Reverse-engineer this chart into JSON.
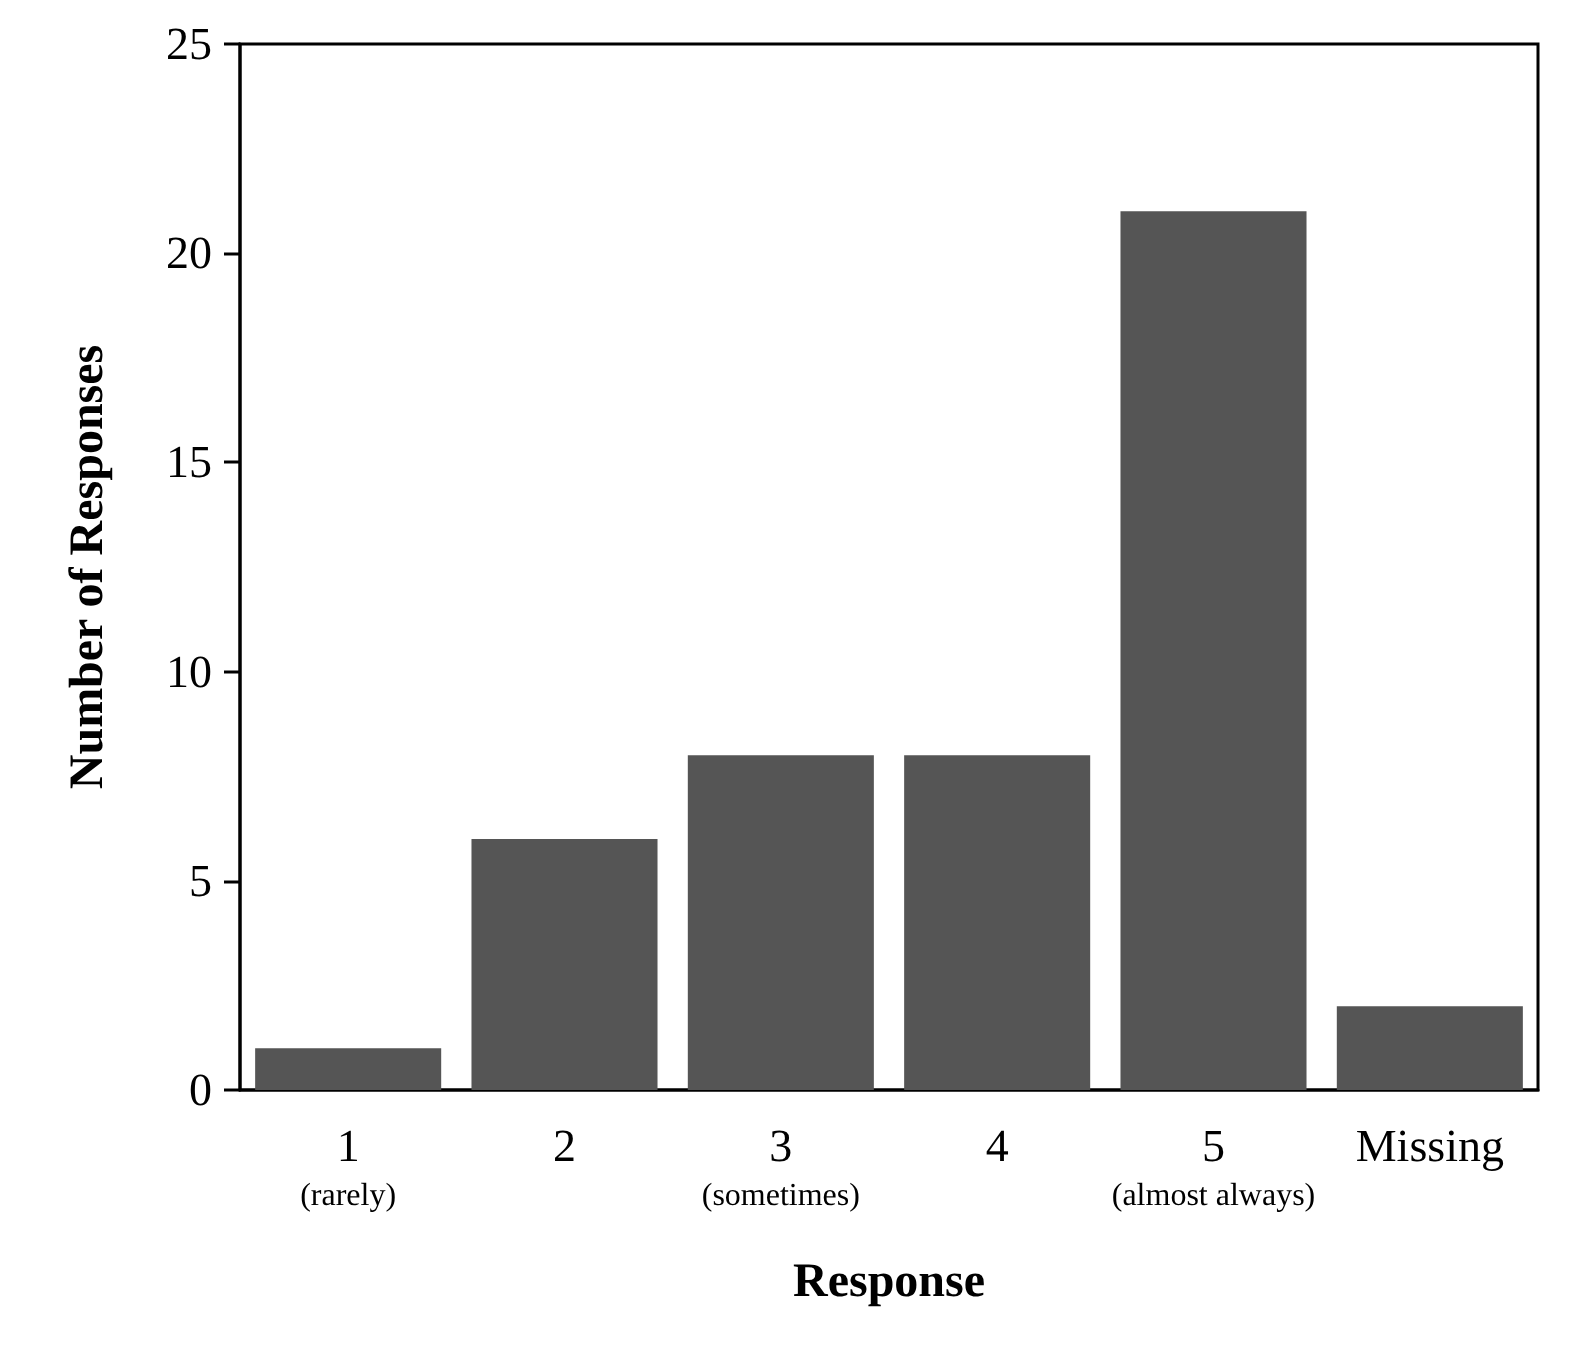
{
  "chart_data": {
    "type": "bar",
    "xlabel": "Response",
    "ylabel": "Number of Responses",
    "categories": [
      "1\n(rarely)",
      "2",
      "3\n(sometimes)",
      "4",
      "5\n(almost always)",
      "Missing"
    ],
    "values": [
      1,
      6,
      8,
      8,
      21,
      2
    ],
    "color": "#555555",
    "ylim": [
      0,
      25
    ],
    "yticks": [
      0,
      5,
      10,
      15,
      20,
      25
    ]
  }
}
